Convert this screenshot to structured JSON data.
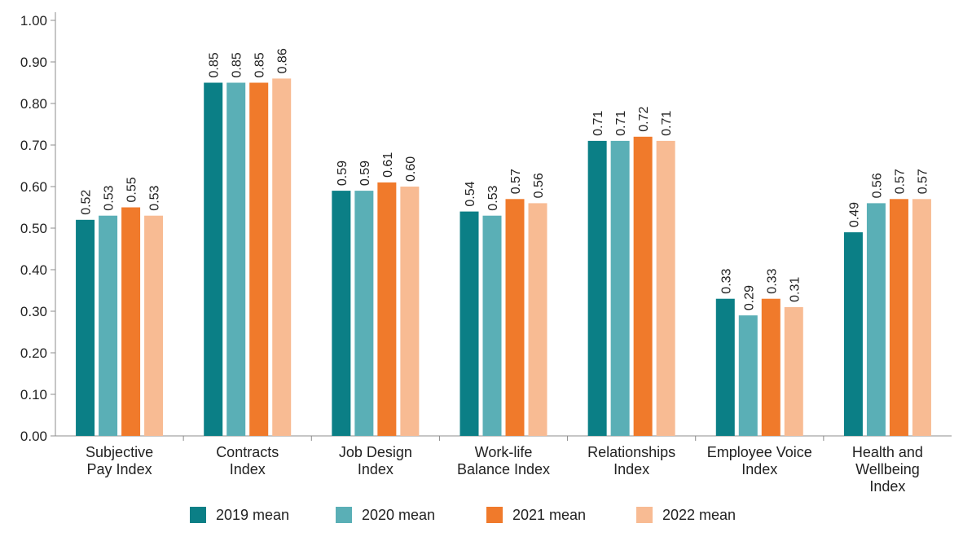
{
  "chart_data": {
    "type": "bar",
    "title": "",
    "xlabel": "",
    "ylabel": "",
    "categories": [
      [
        "Subjective",
        "Pay Index"
      ],
      [
        "Contracts",
        "Index"
      ],
      [
        "Job Design",
        "Index"
      ],
      [
        "Work-life",
        "Balance Index"
      ],
      [
        "Relationships",
        "Index"
      ],
      [
        "Employee Voice",
        "Index"
      ],
      [
        "Health and",
        "Wellbeing",
        "Index"
      ]
    ],
    "series": [
      {
        "name": "2019 mean",
        "color": "#0b7f86",
        "values": [
          0.52,
          0.85,
          0.59,
          0.54,
          0.71,
          0.33,
          0.49
        ],
        "labels": [
          "0.52",
          "0.85",
          "0.59",
          "0.54",
          "0.71",
          "0.33",
          "0.49"
        ]
      },
      {
        "name": "2020 mean",
        "color": "#5aafb6",
        "values": [
          0.53,
          0.85,
          0.59,
          0.53,
          0.71,
          0.29,
          0.56
        ],
        "labels": [
          "0.53",
          "0.85",
          "0.59",
          "0.53",
          "0.71",
          "0.29",
          "0.56"
        ]
      },
      {
        "name": "2021 mean",
        "color": "#f07a2b",
        "values": [
          0.55,
          0.85,
          0.61,
          0.57,
          0.72,
          0.33,
          0.57
        ],
        "labels": [
          "0.55",
          "0.85",
          "0.61",
          "0.57",
          "0.72",
          "0.33",
          "0.57"
        ]
      },
      {
        "name": "2022 mean",
        "color": "#f8bb93",
        "values": [
          0.53,
          0.86,
          0.6,
          0.56,
          0.71,
          0.31,
          0.57
        ],
        "labels": [
          "0.53",
          "0.86",
          "0.60",
          "0.56",
          "0.71",
          "0.31",
          "0.57"
        ]
      }
    ],
    "ylim": [
      0,
      1.0
    ],
    "yticks": [
      "0.00",
      "0.10",
      "0.20",
      "0.30",
      "0.40",
      "0.50",
      "0.60",
      "0.70",
      "0.80",
      "0.90",
      "1.00"
    ],
    "ytick_values": [
      0,
      0.1,
      0.2,
      0.3,
      0.4,
      0.5,
      0.6,
      0.7,
      0.8,
      0.9,
      1.0
    ],
    "grid": false,
    "legend_position": "bottom"
  }
}
